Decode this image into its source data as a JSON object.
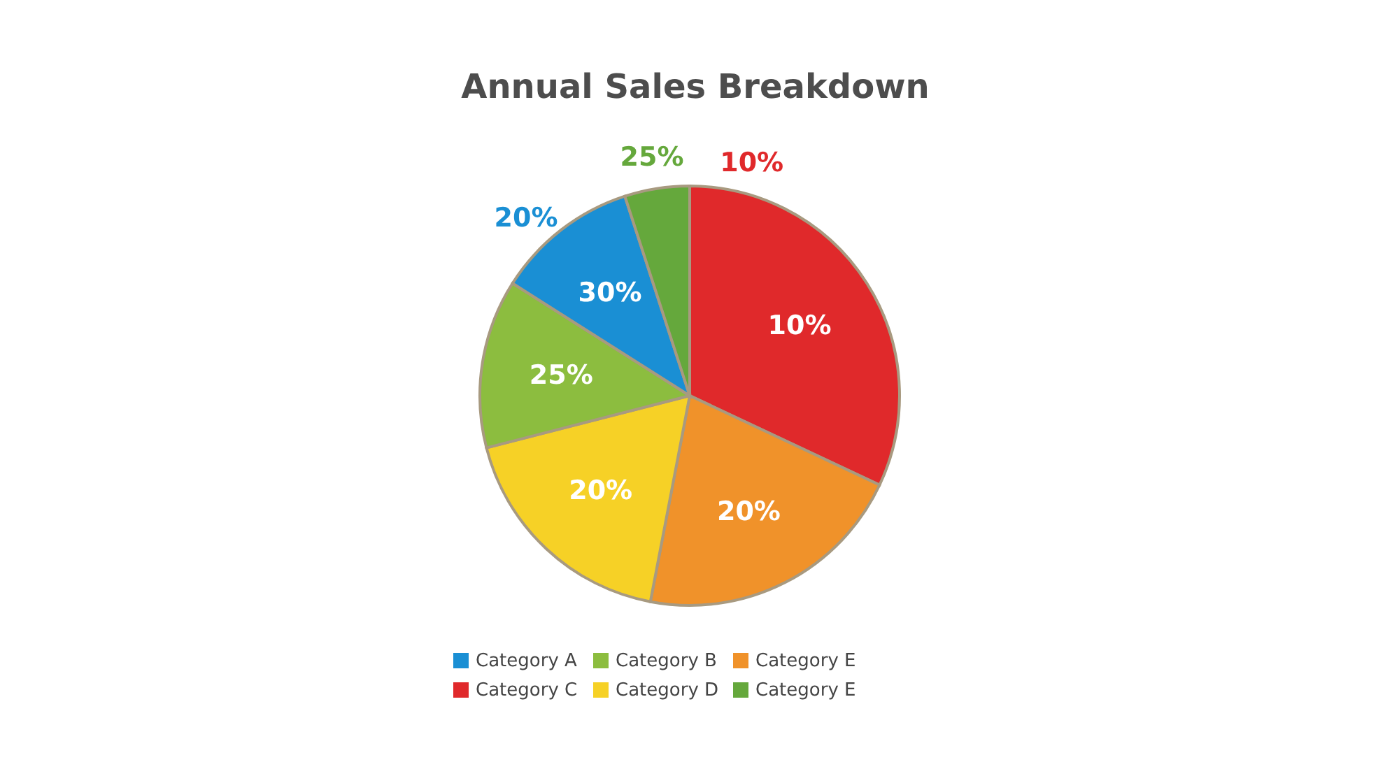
{
  "chart_data": {
    "type": "pie",
    "title": "Annual Sales Breakdown",
    "categories": [
      "Category C",
      "Category E",
      "Category D",
      "Category B",
      "Category A",
      "Category E"
    ],
    "values": [
      32,
      21,
      18,
      13,
      11,
      5
    ],
    "colors": [
      "#e0292b",
      "#f0922a",
      "#f6d126",
      "#8cbd3f",
      "#1a8fd4",
      "#65a83c"
    ],
    "annotations": [
      {
        "text": "10%",
        "x": "Category C"
      },
      {
        "text": "20%",
        "x": "Category E"
      },
      {
        "text": "20%",
        "x": "Category D"
      },
      {
        "text": "25%",
        "x": "Category B"
      },
      {
        "text": "30%",
        "x": "Category A"
      },
      {
        "text": "10%",
        "x": "Category C"
      },
      {
        "text": "20%",
        "x": "Category A"
      },
      {
        "text": "25%",
        "x": "Category E"
      }
    ],
    "legend": "bottom"
  }
}
